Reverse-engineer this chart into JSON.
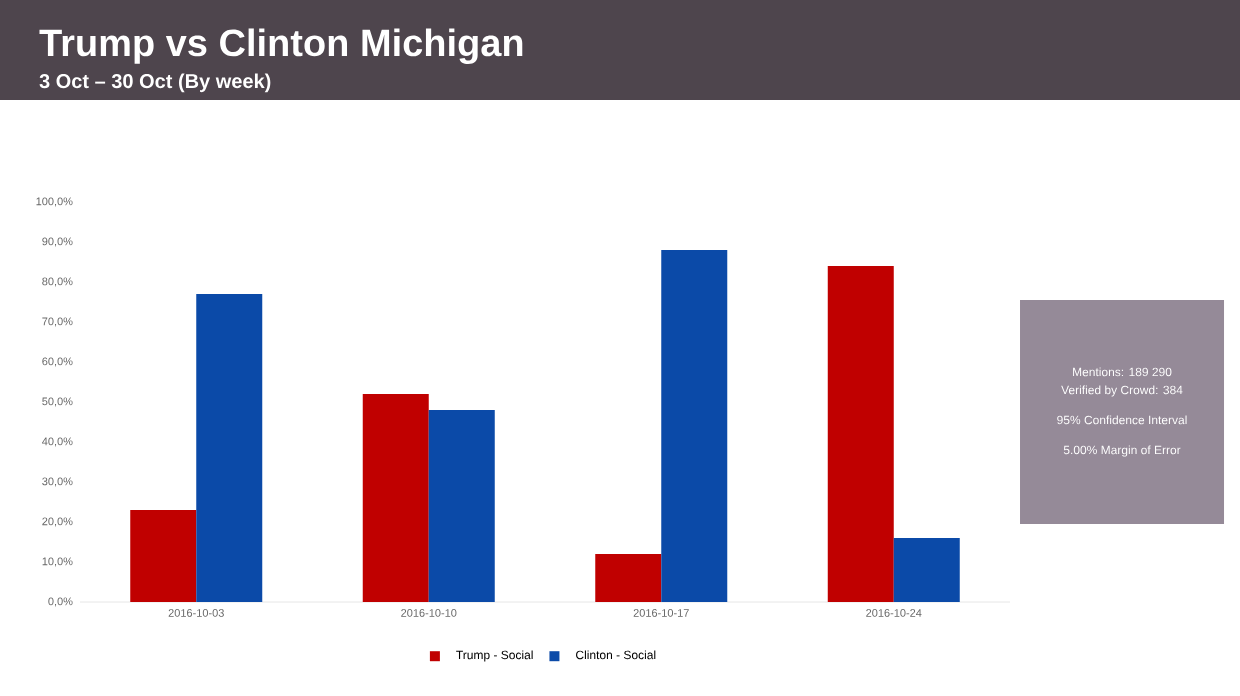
{
  "chart_data": {
    "type": "bar",
    "title": "Trump vs Clinton Michigan",
    "subtitle": "3 Oct – 30 Oct (By week)",
    "categories": [
      "2016-10-03",
      "2016-10-10",
      "2016-10-17",
      "2016-10-24"
    ],
    "series": [
      {
        "name": "Trump - Social",
        "color": "#c00000",
        "values": [
          23,
          52,
          12,
          84
        ]
      },
      {
        "name": "Clinton - Social",
        "color": "#0b4aa8",
        "values": [
          77,
          48,
          88,
          16
        ]
      }
    ],
    "ylim": [
      0,
      100
    ],
    "yticks": [
      {
        "value": 0,
        "label": "0,0%"
      },
      {
        "value": 10,
        "label": "10,0%"
      },
      {
        "value": 20,
        "label": "20,0%"
      },
      {
        "value": 30,
        "label": "30,0%"
      },
      {
        "value": 40,
        "label": "40,0%"
      },
      {
        "value": 50,
        "label": "50,0%"
      },
      {
        "value": 60,
        "label": "60,0%"
      },
      {
        "value": 70,
        "label": "70,0%"
      },
      {
        "value": 80,
        "label": "80,0%"
      },
      {
        "value": 90,
        "label": "90,0%"
      },
      {
        "value": 100,
        "label": "100,0%"
      }
    ],
    "legend": "bottom",
    "annotations": [
      "Mentions:  189 290",
      "Verified by Crowd:  384",
      "95% Confidence Interval",
      "5.00% Margin of Error"
    ]
  }
}
